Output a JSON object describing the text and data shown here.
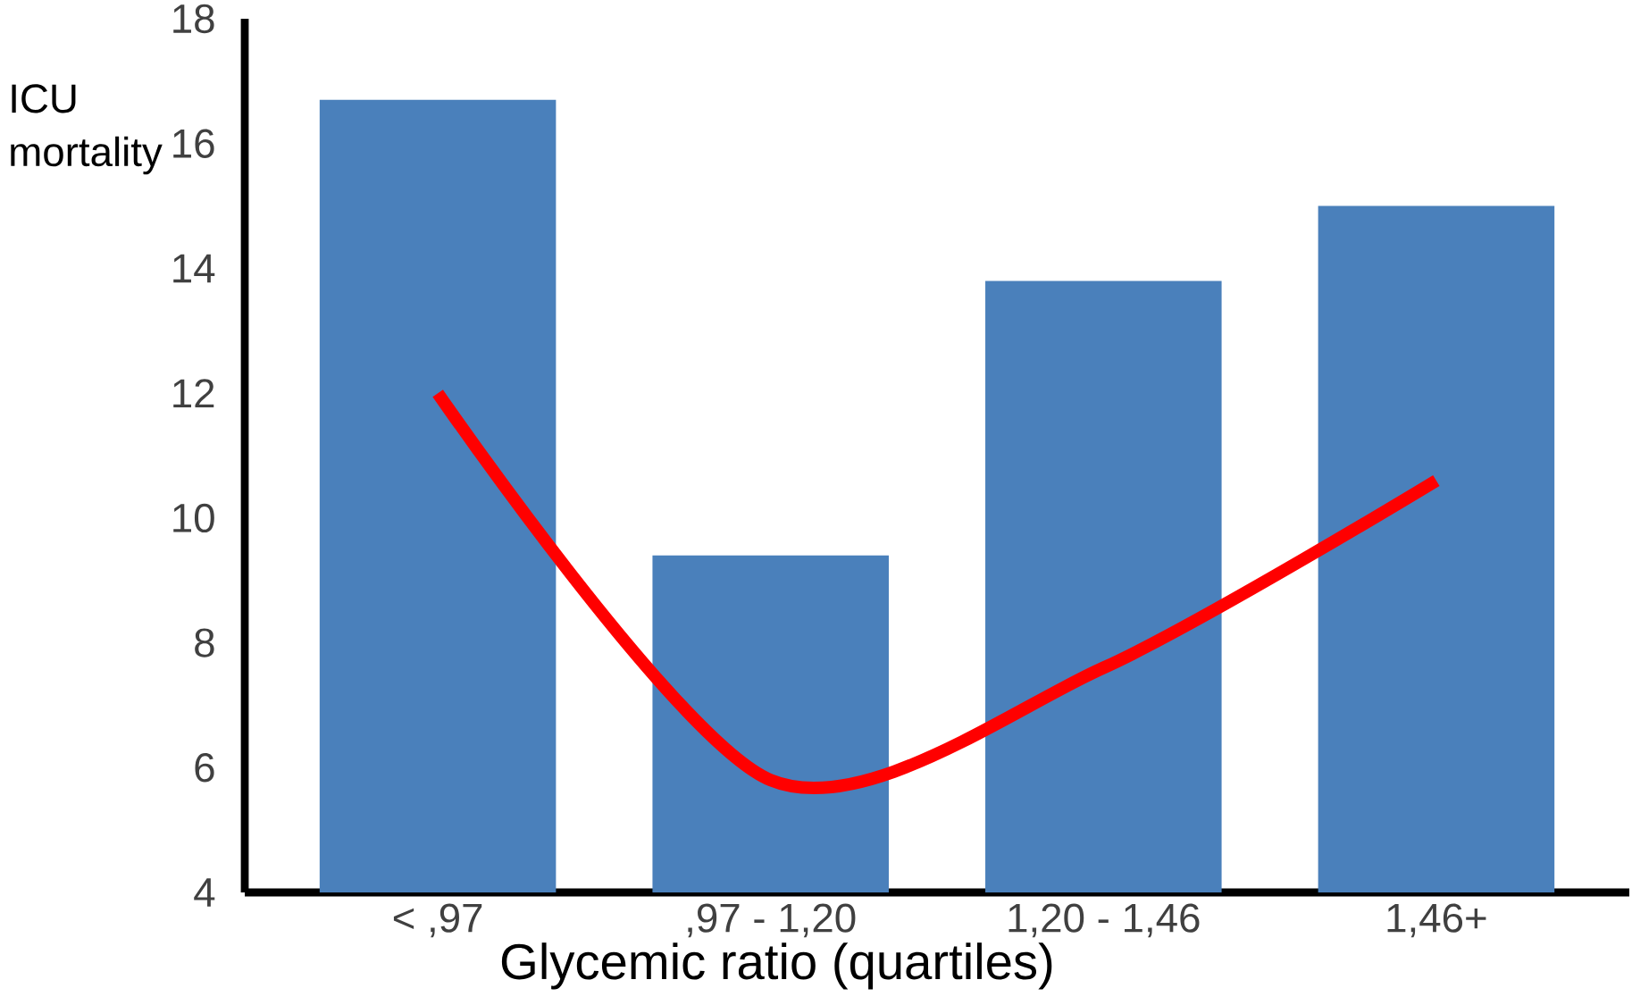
{
  "chart_data": {
    "type": "bar",
    "xlabel": "Glycemic ratio (quartiles)",
    "ylabel": "ICU mortality",
    "categories": [
      "< ,97",
      ",97 - 1,20",
      "1,20 - 1,46",
      "1,46+"
    ],
    "ylim": [
      4,
      18
    ],
    "yticks": [
      4,
      6,
      8,
      10,
      12,
      14,
      16,
      18
    ],
    "grid": false,
    "series": [
      {
        "color": "#4a80bb",
        "values": [
          16.7,
          9.4,
          13.8,
          15.0
        ]
      },
      {
        "type": "line",
        "color": "#ff0000",
        "values": [
          12.0,
          5.8,
          7.6,
          10.6
        ]
      }
    ]
  }
}
